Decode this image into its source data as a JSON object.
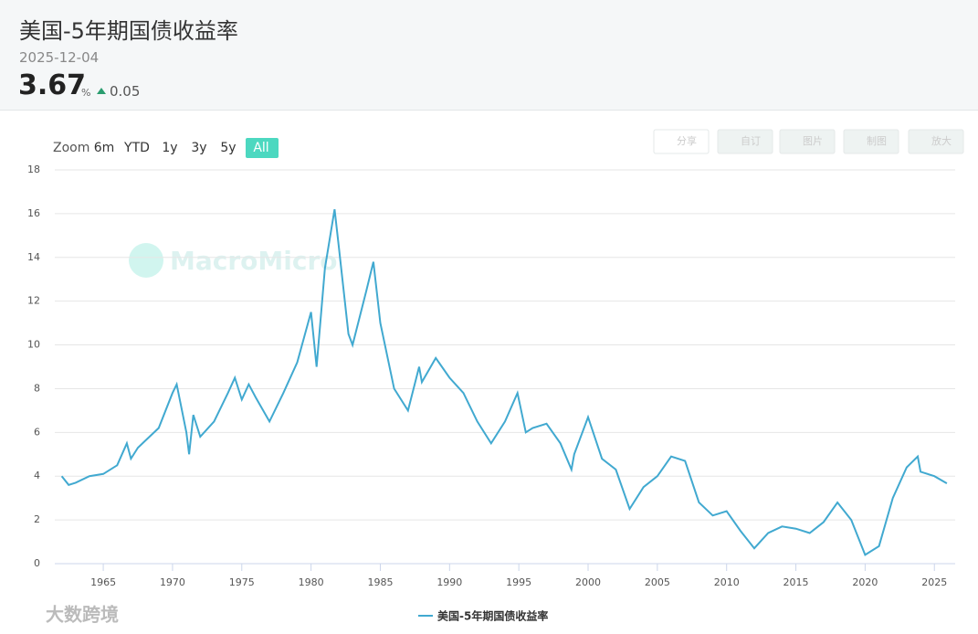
{
  "header": {
    "title": "美国-5年期国债收益率",
    "date": "2025-12-04",
    "value": "3.67",
    "unit": "%",
    "change": "0.05"
  },
  "toolbar": {
    "zoom_label": "Zoom",
    "ranges": [
      "6m",
      "YTD",
      "1y",
      "3y",
      "5y",
      "All"
    ],
    "buttons": [
      "分享",
      "自订",
      "图片",
      "制图",
      "放大"
    ]
  },
  "watermarks": [
    "MacroMicro",
    "大数跨境"
  ],
  "chart_data": {
    "type": "line",
    "x": [
      1962,
      1962.5,
      1963,
      1964,
      1965,
      1966,
      1966.7,
      1967,
      1967.5,
      1968,
      1969,
      1970,
      1970.3,
      1971,
      1971.2,
      1971.5,
      1972,
      1973,
      1974,
      1974.5,
      1975,
      1975.5,
      1976,
      1977,
      1978,
      1979,
      1980,
      1980.4,
      1981,
      1981.7,
      1982,
      1982.7,
      1983,
      1984,
      1984.5,
      1985,
      1986,
      1987,
      1987.8,
      1988,
      1989,
      1990,
      1991,
      1992,
      1993,
      1994,
      1994.9,
      1995.5,
      1996,
      1997,
      1998,
      1998.8,
      1999,
      2000,
      2001,
      2002,
      2003,
      2004,
      2005,
      2006,
      2007,
      2008,
      2009,
      2010,
      2011,
      2012,
      2013,
      2014,
      2015,
      2016,
      2017,
      2018,
      2019,
      2020,
      2021,
      2022,
      2023,
      2023.8,
      2024,
      2025,
      2025.9
    ],
    "series": [
      {
        "name": "美国-5年期国债收益率",
        "color": "#41a9d0",
        "values": [
          4.0,
          3.6,
          3.7,
          4.0,
          4.1,
          4.5,
          5.5,
          4.8,
          5.3,
          5.6,
          6.2,
          7.8,
          8.2,
          6.0,
          5.0,
          6.8,
          5.8,
          6.5,
          7.8,
          8.5,
          7.5,
          8.2,
          7.6,
          6.5,
          7.8,
          9.2,
          11.5,
          9.0,
          13.5,
          16.2,
          14.5,
          10.5,
          10.0,
          12.5,
          13.8,
          11.0,
          8.0,
          7.0,
          9.0,
          8.3,
          9.4,
          8.5,
          7.8,
          6.5,
          5.5,
          6.5,
          7.8,
          6.0,
          6.2,
          6.4,
          5.5,
          4.3,
          5.0,
          6.7,
          4.8,
          4.3,
          2.5,
          3.5,
          4.0,
          4.9,
          4.7,
          2.8,
          2.2,
          2.4,
          1.5,
          0.7,
          1.4,
          1.7,
          1.6,
          1.4,
          1.9,
          2.8,
          2.0,
          0.4,
          0.8,
          3.0,
          4.4,
          4.9,
          4.2,
          4.0,
          3.67
        ]
      }
    ],
    "xlim": [
      1961.5,
      2026.5
    ],
    "xticks": [
      1965,
      1970,
      1975,
      1980,
      1985,
      1990,
      1995,
      2000,
      2005,
      2010,
      2015,
      2020,
      2025
    ],
    "ylim": [
      0,
      18
    ],
    "yticks": [
      0,
      2,
      4,
      6,
      8,
      10,
      12,
      14,
      16,
      18
    ],
    "grid": true
  }
}
